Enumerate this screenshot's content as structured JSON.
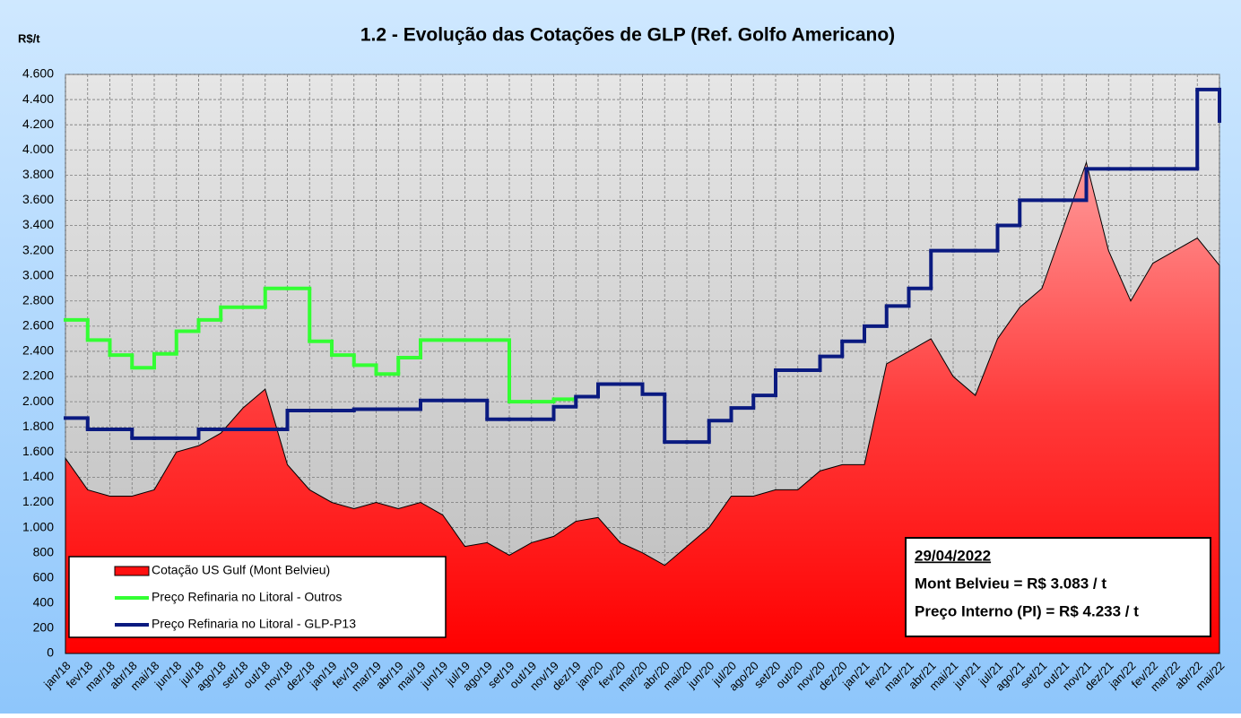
{
  "chart_data": {
    "type": "line",
    "title": "1.2 - Evolução das Cotações de GLP (Ref. Golfo Americano)",
    "y_label": "R$/t",
    "categories": [
      "jan/18",
      "fev/18",
      "mar/18",
      "abr/18",
      "mai/18",
      "jun/18",
      "jul/18",
      "ago/18",
      "set/18",
      "out/18",
      "nov/18",
      "dez/18",
      "jan/19",
      "fev/19",
      "mar/19",
      "abr/19",
      "mai/19",
      "jun/19",
      "jul/19",
      "ago/19",
      "set/19",
      "out/19",
      "nov/19",
      "dez/19",
      "jan/20",
      "fev/20",
      "mar/20",
      "abr/20",
      "mai/20",
      "jun/20",
      "jul/20",
      "ago/20",
      "set/20",
      "out/20",
      "nov/20",
      "dez/20",
      "jan/21",
      "fev/21",
      "mar/21",
      "abr/21",
      "mai/21",
      "jun/21",
      "jul/21",
      "ago/21",
      "set/21",
      "out/21",
      "nov/21",
      "dez/21",
      "jan/22",
      "fev/22",
      "mar/22",
      "abr/22",
      "mai/22"
    ],
    "series": [
      {
        "name": "Cotação US Gulf (Mont Belvieu)",
        "kind": "area",
        "color": "#ff1010",
        "values": [
          1550,
          1300,
          1250,
          1250,
          1300,
          1600,
          1650,
          1750,
          1950,
          2100,
          1500,
          1300,
          1200,
          1150,
          1200,
          1150,
          1200,
          1100,
          850,
          880,
          780,
          880,
          930,
          1050,
          1080,
          880,
          800,
          700,
          850,
          1000,
          1250,
          1250,
          1300,
          1300,
          1450,
          1500,
          1500,
          2300,
          2400,
          2500,
          2200,
          2050,
          2500,
          2750,
          2900,
          3400,
          3900,
          3200,
          2800,
          3100,
          3200,
          3300,
          3083
        ]
      },
      {
        "name": "Preço Refinaria no Litoral - Outros",
        "kind": "step",
        "color": "#33ff33",
        "values": [
          2650,
          2490,
          2370,
          2270,
          2380,
          2560,
          2650,
          2750,
          2750,
          2900,
          2900,
          2480,
          2370,
          2290,
          2220,
          2350,
          2490,
          2490,
          2490,
          2490,
          2000,
          2000,
          2020,
          null,
          null,
          null,
          null,
          null,
          null,
          null,
          null,
          null,
          null,
          null,
          null,
          null,
          null,
          null,
          null,
          null,
          null,
          null,
          null,
          null,
          null,
          null,
          null,
          null,
          null,
          null,
          null,
          null,
          null
        ]
      },
      {
        "name": "Preço Refinaria no Litoral - GLP-P13",
        "kind": "step",
        "color": "#0a1a80",
        "values": [
          1870,
          1780,
          1780,
          1710,
          1710,
          1710,
          1780,
          1780,
          1780,
          1780,
          1930,
          1930,
          1930,
          1940,
          1940,
          1940,
          2010,
          2010,
          2010,
          1860,
          1860,
          1860,
          1960,
          2040,
          2140,
          2140,
          2060,
          1680,
          1680,
          1850,
          1950,
          2050,
          2250,
          2250,
          2360,
          2480,
          2600,
          2760,
          2900,
          3200,
          3200,
          3200,
          3400,
          3600,
          3600,
          3600,
          3850,
          3850,
          3850,
          3850,
          3850,
          4480,
          4230
        ]
      }
    ],
    "ylim": [
      0,
      4600
    ],
    "yticks": [
      0,
      200,
      400,
      600,
      800,
      {
        "value": 1000,
        "label": "1.000"
      },
      {
        "value": 1200,
        "label": "1.200"
      },
      {
        "value": 1400,
        "label": "1.400"
      },
      {
        "value": 1600,
        "label": "1.600"
      },
      {
        "value": 1800,
        "label": "1.800"
      },
      {
        "value": 2000,
        "label": "2.000"
      },
      {
        "value": 2200,
        "label": "2.200"
      },
      {
        "value": 2400,
        "label": "2.400"
      },
      {
        "value": 2600,
        "label": "2.600"
      },
      {
        "value": 2800,
        "label": "2.800"
      },
      {
        "value": 3000,
        "label": "3.000"
      },
      {
        "value": 3200,
        "label": "3.200"
      },
      {
        "value": 3400,
        "label": "3.400"
      },
      {
        "value": 3600,
        "label": "3.600"
      },
      {
        "value": 3800,
        "label": "3.800"
      },
      {
        "value": 4000,
        "label": "4.000"
      },
      {
        "value": 4200,
        "label": "4.200"
      },
      {
        "value": 4400,
        "label": "4.400"
      },
      {
        "value": 4600,
        "label": "4.600"
      }
    ],
    "grid": true,
    "legend": "lower left",
    "annotations": [
      "29/04/2022",
      "Mont Belvieu = R$ 3.083 / t",
      "Preço Interno (PI) = R$ 4.233 / t"
    ]
  }
}
